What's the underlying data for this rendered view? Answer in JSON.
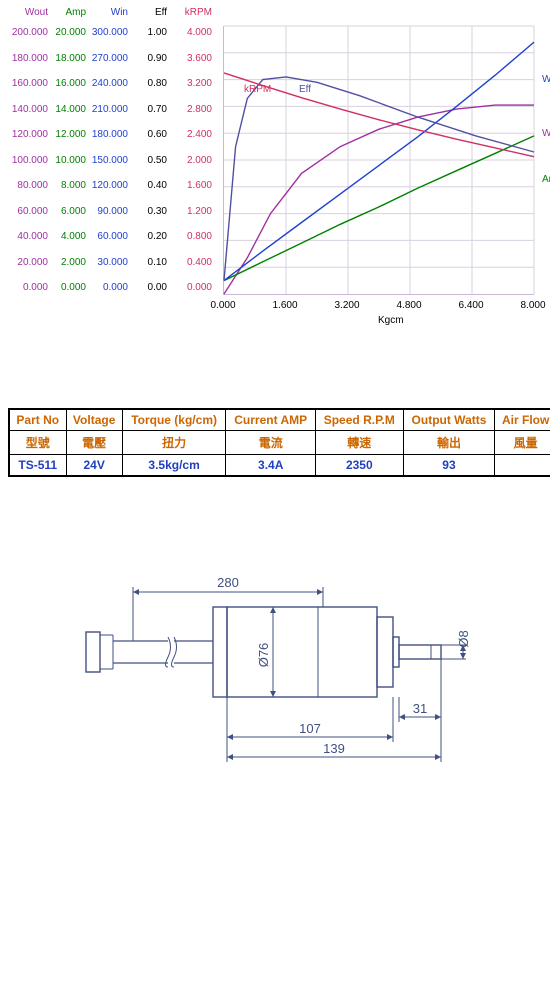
{
  "chart": {
    "type": "line",
    "background_color": "#ffffff",
    "grid_color": "#d8d0e0",
    "x": {
      "label": "Kgcm",
      "ticks": [
        "0.000",
        "1.600",
        "3.200",
        "4.800",
        "6.400",
        "8.000"
      ],
      "lim": [
        0,
        8
      ]
    },
    "y_axes": [
      {
        "key": "wout",
        "label": "Wout",
        "color": "#a030a0",
        "ticks": [
          "200.000",
          "180.000",
          "160.000",
          "140.000",
          "120.000",
          "100.000",
          "80.000",
          "60.000",
          "40.000",
          "20.000",
          "0.000"
        ],
        "lim": [
          0,
          200
        ]
      },
      {
        "key": "amp",
        "label": "Amp",
        "color": "#008000",
        "ticks": [
          "20.000",
          "18.000",
          "16.000",
          "14.000",
          "12.000",
          "10.000",
          "8.000",
          "6.000",
          "4.000",
          "2.000",
          "0.000"
        ],
        "lim": [
          0,
          20
        ]
      },
      {
        "key": "win",
        "label": "Win",
        "color": "#2040d0",
        "ticks": [
          "300.000",
          "270.000",
          "240.000",
          "210.000",
          "180.000",
          "150.000",
          "120.000",
          "90.000",
          "60.000",
          "30.000",
          "0.000"
        ],
        "lim": [
          0,
          300
        ]
      },
      {
        "key": "eff",
        "label": "Eff",
        "color": "#000000",
        "ticks": [
          "1.00",
          "0.90",
          "0.80",
          "0.70",
          "0.60",
          "0.50",
          "0.40",
          "0.30",
          "0.20",
          "0.10",
          "0.00"
        ],
        "lim": [
          0,
          1
        ]
      },
      {
        "key": "krpm",
        "label": "kRPM",
        "color": "#d03060",
        "ticks": [
          "4.000",
          "3.600",
          "3.200",
          "2.800",
          "2.400",
          "2.000",
          "1.600",
          "1.200",
          "0.800",
          "0.400",
          "0.000"
        ],
        "lim": [
          0,
          4
        ]
      }
    ],
    "series": {
      "wout": {
        "color": "#a030a0",
        "label": "Wout",
        "label_pos": {
          "x": 318,
          "y": 102
        },
        "points": [
          [
            0,
            0
          ],
          [
            0.6,
            27
          ],
          [
            1.2,
            60
          ],
          [
            2.0,
            90
          ],
          [
            3.0,
            110
          ],
          [
            4.0,
            123
          ],
          [
            5.0,
            132
          ],
          [
            6.0,
            138
          ],
          [
            7.0,
            141
          ],
          [
            8.0,
            141
          ]
        ]
      },
      "amp": {
        "color": "#008000",
        "label": "Amp",
        "label_pos": {
          "x": 318,
          "y": 148
        },
        "points": [
          [
            0,
            1.0
          ],
          [
            1,
            2.4
          ],
          [
            2,
            3.8
          ],
          [
            3,
            5.2
          ],
          [
            4,
            6.5
          ],
          [
            5,
            7.9
          ],
          [
            6,
            9.2
          ],
          [
            7,
            10.5
          ],
          [
            8,
            11.8
          ]
        ]
      },
      "win": {
        "color": "#2040d0",
        "label": "Win",
        "label_pos": {
          "x": 318,
          "y": 48
        },
        "points": [
          [
            0,
            15
          ],
          [
            1,
            48
          ],
          [
            2,
            80
          ],
          [
            3,
            112
          ],
          [
            4,
            144
          ],
          [
            5,
            176
          ],
          [
            6,
            210
          ],
          [
            7,
            245
          ],
          [
            8,
            282
          ]
        ]
      },
      "eff": {
        "color": "#5050a0",
        "label": "Eff",
        "label_pos": {
          "x": 75,
          "y": 58
        },
        "points": [
          [
            0,
            0.05
          ],
          [
            0.3,
            0.55
          ],
          [
            0.6,
            0.73
          ],
          [
            1.0,
            0.8
          ],
          [
            1.6,
            0.81
          ],
          [
            2.4,
            0.79
          ],
          [
            3.5,
            0.74
          ],
          [
            5.0,
            0.66
          ],
          [
            6.5,
            0.59
          ],
          [
            8.0,
            0.53
          ]
        ]
      },
      "krpm": {
        "color": "#d03060",
        "label": "kRPM",
        "label_pos": {
          "x": 20,
          "y": 58
        },
        "points": [
          [
            0,
            3.3
          ],
          [
            1,
            3.11
          ],
          [
            2,
            2.93
          ],
          [
            3,
            2.76
          ],
          [
            4,
            2.6
          ],
          [
            5,
            2.45
          ],
          [
            6,
            2.31
          ],
          [
            7,
            2.18
          ],
          [
            8,
            2.05
          ]
        ]
      }
    }
  },
  "table": {
    "headers_en": [
      "Part No",
      "Voltage",
      "Torque (kg/cm)",
      "Current AMP",
      "Speed R.P.M",
      "Output Watts",
      "Air Flow"
    ],
    "headers_zh": [
      "型號",
      "電壓",
      "扭力",
      "電流",
      "轉速",
      "輸出",
      "風量"
    ],
    "row": [
      "TS-511",
      "24V",
      "3.5kg/cm",
      "3.4A",
      "2350",
      "93",
      ""
    ]
  },
  "drawing": {
    "dims": {
      "len_280": "280",
      "dia_76": "Ø76",
      "dia_8": "Ø8",
      "shaft_31": "31",
      "body_107": "107",
      "total_139": "139"
    },
    "stroke": "#405080",
    "fontsize": 13
  }
}
